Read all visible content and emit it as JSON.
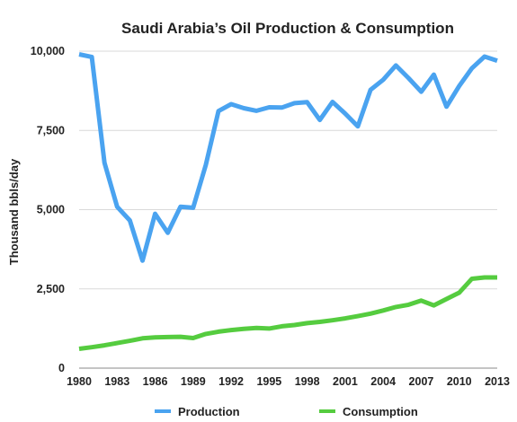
{
  "chart_data": {
    "type": "line",
    "title": "Saudi Arabia’s Oil Production & Consumption",
    "ylabel": "Thousand bbls/day",
    "xlabel": "",
    "ylim": [
      0,
      10000
    ],
    "xlim": [
      1980,
      2013
    ],
    "y_ticks": [
      "0",
      "2,500",
      "5,000",
      "7,500",
      "10,000"
    ],
    "y_tick_values": [
      0,
      2500,
      5000,
      7500,
      10000
    ],
    "x_ticks": [
      "1980",
      "1983",
      "1986",
      "1989",
      "1992",
      "1995",
      "1998",
      "2001",
      "2004",
      "2007",
      "2010",
      "2013"
    ],
    "x_tick_values": [
      1980,
      1983,
      1986,
      1989,
      1992,
      1995,
      1998,
      2001,
      2004,
      2007,
      2010,
      2013
    ],
    "grid": true,
    "legend_position": "bottom",
    "x": [
      1980,
      1981,
      1982,
      1983,
      1984,
      1985,
      1986,
      1987,
      1988,
      1989,
      1990,
      1991,
      1992,
      1993,
      1994,
      1995,
      1996,
      1997,
      1998,
      1999,
      2000,
      2001,
      2002,
      2003,
      2004,
      2005,
      2006,
      2007,
      2008,
      2009,
      2010,
      2011,
      2012,
      2013
    ],
    "series": [
      {
        "name": "Production",
        "color": "#4aa3f0",
        "values": [
          9900,
          9820,
          6480,
          5090,
          4660,
          3390,
          4870,
          4270,
          5090,
          5060,
          6410,
          8110,
          8330,
          8200,
          8120,
          8230,
          8220,
          8360,
          8390,
          7830,
          8400,
          8030,
          7630,
          8780,
          9100,
          9550,
          9150,
          8720,
          9260,
          8250,
          8900,
          9460,
          9830,
          9700
        ]
      },
      {
        "name": "Consumption",
        "color": "#55cc3f",
        "values": [
          610,
          660,
          720,
          790,
          860,
          940,
          970,
          980,
          990,
          950,
          1080,
          1150,
          1200,
          1240,
          1270,
          1250,
          1320,
          1360,
          1420,
          1460,
          1510,
          1570,
          1640,
          1720,
          1820,
          1930,
          2000,
          2130,
          1980,
          2180,
          2380,
          2820,
          2860,
          2860
        ]
      }
    ]
  }
}
